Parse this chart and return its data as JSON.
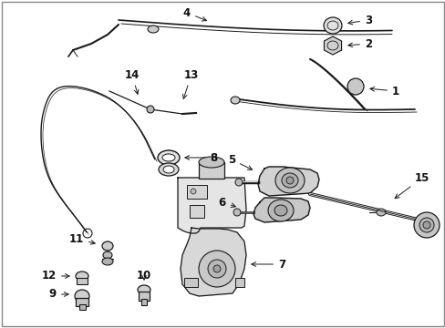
{
  "bg_color": "#ffffff",
  "line_color": "#1a1a1a",
  "text_color": "#111111",
  "fig_width": 4.89,
  "fig_height": 3.6,
  "dpi": 100,
  "label_fs": 8.5
}
